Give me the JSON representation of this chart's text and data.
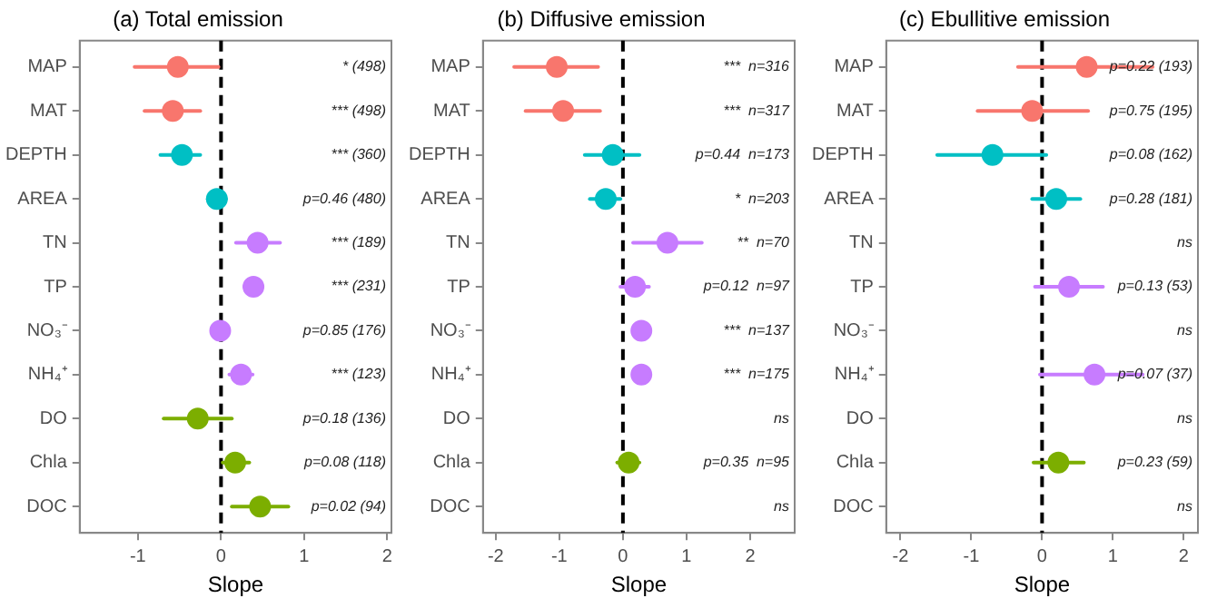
{
  "chart_data": [
    {
      "type": "scatter",
      "orientation": "horizontal",
      "title": "(a) Total emission",
      "xlabel": "Slope",
      "categories": [
        "MAP",
        "MAT",
        "DEPTH",
        "AREA",
        "TN",
        "TP",
        "NO₃⁻",
        "NH₄⁺",
        "DO",
        "Chla",
        "DOC"
      ],
      "series": [
        {
          "values": [
            -0.52,
            -0.58,
            -0.47,
            -0.05,
            0.44,
            0.39,
            -0.01,
            0.24,
            -0.28,
            0.17,
            0.47
          ],
          "errors": [
            [
              -1.04,
              -0.03
            ],
            [
              -0.92,
              -0.25
            ],
            [
              -0.73,
              -0.25
            ],
            [
              -0.16,
              0.06
            ],
            [
              0.18,
              0.71
            ],
            [
              0.28,
              0.5
            ],
            [
              -0.09,
              0.08
            ],
            [
              0.1,
              0.38
            ],
            [
              -0.69,
              0.13
            ],
            [
              0.02,
              0.34
            ],
            [
              0.13,
              0.81
            ]
          ],
          "colors": [
            "#f8766d",
            "#f8766d",
            "#00bfc4",
            "#00bfc4",
            "#c77cff",
            "#c77cff",
            "#c77cff",
            "#c77cff",
            "#7cae00",
            "#7cae00",
            "#7cae00"
          ]
        }
      ],
      "xlim": [
        -1.7,
        2.05
      ],
      "xticks": [
        -1,
        0,
        1,
        2
      ],
      "grid": false,
      "legend": false,
      "marker": "circle",
      "ref_lines": [
        {
          "axis": "x",
          "value": 0,
          "color": "#000000",
          "line_style": "dashed"
        }
      ],
      "annotations": [
        "* (498)",
        "*** (498)",
        "*** (360)",
        "p=0.46 (480)",
        "*** (189)",
        "*** (231)",
        "p=0.85 (176)",
        "*** (123)",
        "p=0.18 (136)",
        "p=0.08 (118)",
        "p=0.02 (94)"
      ]
    },
    {
      "type": "scatter",
      "orientation": "horizontal",
      "title": "(b) Diffusive emission",
      "xlabel": "Slope",
      "categories": [
        "MAP",
        "MAT",
        "DEPTH",
        "AREA",
        "TN",
        "TP",
        "NO₃⁻",
        "NH₄⁺",
        "DO",
        "Chla",
        "DOC"
      ],
      "series": [
        {
          "values": [
            -1.04,
            -0.94,
            -0.16,
            -0.27,
            0.7,
            0.19,
            0.29,
            0.29,
            null,
            0.09,
            null
          ],
          "errors": [
            [
              -1.71,
              -0.39
            ],
            [
              -1.53,
              -0.36
            ],
            [
              -0.6,
              0.26
            ],
            [
              -0.52,
              -0.04
            ],
            [
              0.16,
              1.24
            ],
            [
              -0.04,
              0.41
            ],
            [
              0.16,
              0.41
            ],
            [
              0.16,
              0.41
            ],
            null,
            [
              -0.09,
              0.26
            ],
            null
          ],
          "colors": [
            "#f8766d",
            "#f8766d",
            "#00bfc4",
            "#00bfc4",
            "#c77cff",
            "#c77cff",
            "#c77cff",
            "#c77cff",
            "#7cae00",
            "#7cae00",
            "#7cae00"
          ]
        }
      ],
      "xlim": [
        -2.2,
        2.7
      ],
      "xticks": [
        -2,
        -1,
        0,
        1,
        2
      ],
      "grid": false,
      "legend": false,
      "marker": "circle",
      "ref_lines": [
        {
          "axis": "x",
          "value": 0,
          "color": "#000000",
          "line_style": "dashed"
        }
      ],
      "annotations": [
        "***  n=316",
        "***  n=317",
        "p=0.44  n=173",
        "*  n=203",
        "**  n=70",
        "p=0.12  n=97",
        "***  n=137",
        "***  n=175",
        "ns",
        "p=0.35  n=95",
        "ns"
      ]
    },
    {
      "type": "scatter",
      "orientation": "horizontal",
      "title": "(c) Ebullitive emission",
      "xlabel": "Slope",
      "categories": [
        "MAP",
        "MAT",
        "DEPTH",
        "AREA",
        "TN",
        "TP",
        "NO₃⁻",
        "NH₄⁺",
        "DO",
        "Chla",
        "DOC"
      ],
      "series": [
        {
          "values": [
            0.63,
            -0.14,
            -0.7,
            0.2,
            null,
            0.38,
            null,
            0.74,
            null,
            0.23,
            null
          ],
          "errors": [
            [
              -0.34,
              1.56
            ],
            [
              -0.91,
              0.65
            ],
            [
              -1.48,
              0.06
            ],
            [
              -0.14,
              0.54
            ],
            null,
            [
              -0.1,
              0.86
            ],
            null,
            [
              -0.03,
              1.42
            ],
            null,
            [
              -0.12,
              0.59
            ],
            null
          ],
          "colors": [
            "#f8766d",
            "#f8766d",
            "#00bfc4",
            "#00bfc4",
            "#c77cff",
            "#c77cff",
            "#c77cff",
            "#c77cff",
            "#7cae00",
            "#7cae00",
            "#7cae00"
          ]
        }
      ],
      "xlim": [
        -2.2,
        2.2
      ],
      "xticks": [
        -2,
        -1,
        0,
        1,
        2
      ],
      "grid": false,
      "legend": false,
      "marker": "circle",
      "ref_lines": [
        {
          "axis": "x",
          "value": 0,
          "color": "#000000",
          "line_style": "dashed"
        }
      ],
      "annotations": [
        "p=0.22 (193)",
        "p=0.75 (195)",
        "p=0.08 (162)",
        "p=0.28 (181)",
        "ns",
        "p=0.13 (53)",
        "ns",
        "p=0.07 (37)",
        "ns",
        "p=0.23 (59)",
        "ns"
      ]
    }
  ]
}
